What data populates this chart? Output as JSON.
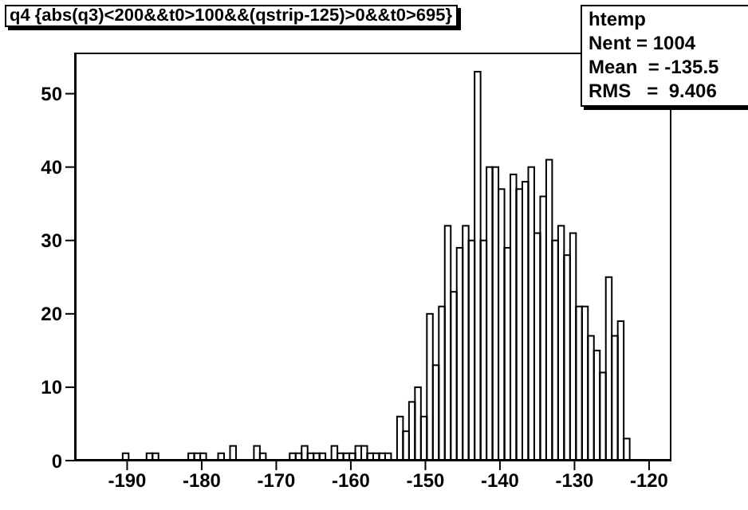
{
  "chart_data": {
    "type": "histogram",
    "title": "q4 {abs(q3)<200&&t0>100&&(qstrip-125)>0&&t0>695}",
    "bins": [
      -197,
      -196.2,
      -195.4,
      -194.6,
      -193.8,
      -193,
      -192.2,
      -191.4,
      -190.6,
      -189.8,
      -189,
      -188.2,
      -187.4,
      -186.6,
      -185.8,
      -185,
      -184.2,
      -183.4,
      -182.6,
      -181.8,
      -181,
      -180.2,
      -179.4,
      -178.6,
      -177.8,
      -177,
      -176.2,
      -175.4,
      -174.6,
      -173.8,
      -173,
      -172.2,
      -171.4,
      -170.6,
      -169.8,
      -169,
      -168.2,
      -167.4,
      -166.6,
      -165.8,
      -165,
      -164.2,
      -163.4,
      -162.6,
      -161.8,
      -161,
      -160.2,
      -159.4,
      -158.6,
      -157.8,
      -157,
      -156.2,
      -155.4,
      -154.6,
      -153.8,
      -153,
      -152.2,
      -151.4,
      -150.6,
      -149.8,
      -149,
      -148.2,
      -147.4,
      -146.6,
      -145.8,
      -145,
      -144.2,
      -143.4,
      -142.6,
      -141.8,
      -141,
      -140.2,
      -139.4,
      -138.6,
      -137.8,
      -137,
      -136.2,
      -135.4,
      -134.6,
      -133.8,
      -133,
      -132.2,
      -131.4,
      -130.6,
      -129.8,
      -129,
      -128.2,
      -127.4,
      -126.6,
      -125.8,
      -125,
      -124.2,
      -123.4,
      -122.6,
      -121.8,
      -121,
      -120.2,
      -119.4,
      -118.6,
      -117.8,
      -117
    ],
    "values": [
      0,
      0,
      0,
      0,
      0,
      0,
      0,
      0,
      1,
      0,
      0,
      0,
      1,
      1,
      0,
      0,
      0,
      0,
      0,
      1,
      1,
      1,
      0,
      0,
      1,
      0,
      2,
      0,
      0,
      0,
      2,
      1,
      0,
      0,
      0,
      0,
      1,
      1,
      2,
      1,
      1,
      1,
      0,
      2,
      1,
      1,
      1,
      2,
      2,
      1,
      1,
      1,
      1,
      0,
      6,
      4,
      8,
      10,
      6,
      20,
      13,
      21,
      32,
      23,
      29,
      32,
      30,
      53,
      30,
      40,
      40,
      37,
      29,
      39,
      37,
      38,
      40,
      31,
      36,
      41,
      30,
      32,
      28,
      31,
      21,
      21,
      17,
      15,
      12,
      25,
      17,
      19,
      3,
      0,
      0,
      0,
      0,
      0,
      0,
      0
    ],
    "color": "#000000",
    "xlim": [
      -197,
      -117
    ],
    "xticks": [
      -190,
      -180,
      -170,
      -160,
      -150,
      -140,
      -130,
      -120
    ],
    "ylim": [
      0,
      55.6
    ],
    "yticks": [
      0,
      10,
      20,
      30,
      40,
      50
    ],
    "annotations": [
      "htemp",
      "Nent = 1004",
      "Mean  = -135.5",
      "RMS   =  9.406"
    ]
  }
}
